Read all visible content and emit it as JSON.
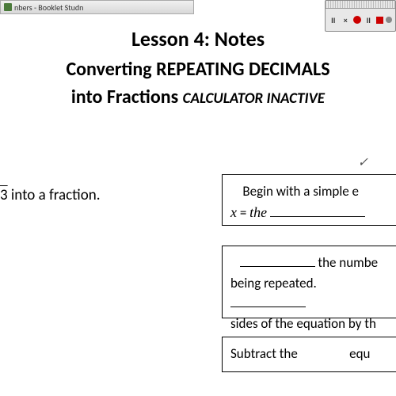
{
  "titlebar": {
    "text": "nbers - Booklet Studn"
  },
  "toolbar": {
    "buttons": [
      {
        "name": "pause-icon",
        "symbol": "II"
      },
      {
        "name": "close-icon",
        "symbol": "×"
      },
      {
        "name": "record-icon",
        "type": "red-dot"
      },
      {
        "name": "pause2-icon",
        "symbol": "II"
      },
      {
        "name": "stop-icon",
        "type": "red-square"
      },
      {
        "name": "indicator-icon",
        "type": "gray-dot"
      }
    ]
  },
  "heading": {
    "line1": "Lesson 4:  Notes",
    "line2": "Converting REPEATING DECIMALS",
    "line3_a": "into Fractions",
    "line3_b": "CALCULATOR INACTIVE"
  },
  "body": {
    "left_fragment_a": "3",
    "left_fragment_b": " into a fraction.",
    "checkmark": "✓"
  },
  "box1": {
    "text_a": "Begin with a simple e",
    "math_var": "x",
    "math_eq": " = ",
    "math_the": "the"
  },
  "box2": {
    "text_a": " the numbe",
    "text_b": "being repeated. ",
    "text_c": "sides of the equation by th"
  },
  "box3": {
    "text_a": "Subtract the",
    "text_b": "equ"
  },
  "styling": {
    "background_color": "#ffffff",
    "heading_color": "#000000",
    "text_color": "#000000",
    "border_color": "#000000",
    "titlebar_bg": "#e0e0e0",
    "toolbar_bg": "#e8e8e8",
    "heading_fontsize": 26,
    "body_fontsize": 17
  }
}
